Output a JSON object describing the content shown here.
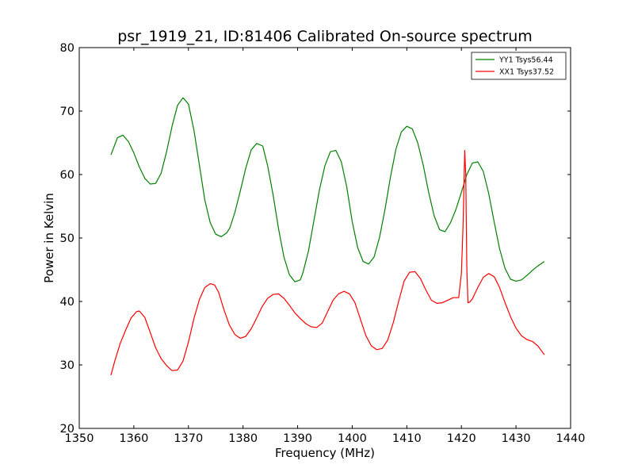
{
  "chart_data": {
    "type": "line",
    "title": "psr_1919_21, ID:81406 Calibrated On-source spectrum",
    "xlabel": "Frequency (MHz)",
    "ylabel": "Power in Kelvin",
    "xlim": [
      1350,
      1440
    ],
    "ylim": [
      20,
      80
    ],
    "xticks": [
      1350,
      1360,
      1370,
      1380,
      1390,
      1400,
      1410,
      1420,
      1430,
      1440
    ],
    "yticks": [
      20,
      30,
      40,
      50,
      60,
      70,
      80
    ],
    "grid": false,
    "legend_position": "top-right",
    "series": [
      {
        "name": "YY1 Tsys56.44",
        "color": "#008000",
        "x": [
          1355.8,
          1357.0,
          1358.0,
          1359.0,
          1360.0,
          1361.0,
          1362.0,
          1363.0,
          1364.0,
          1365.0,
          1366.0,
          1367.0,
          1368.0,
          1369.0,
          1370.0,
          1371.0,
          1372.0,
          1373.0,
          1374.0,
          1375.0,
          1376.0,
          1377.0,
          1377.6,
          1378.5,
          1379.5,
          1380.5,
          1381.5,
          1382.5,
          1383.6,
          1384.5,
          1385.5,
          1386.5,
          1387.5,
          1388.5,
          1389.5,
          1390.5,
          1391.0,
          1392.0,
          1393.0,
          1394.0,
          1395.0,
          1396.0,
          1397.0,
          1398.0,
          1399.0,
          1400.0,
          1401.0,
          1402.0,
          1403.0,
          1404.0,
          1405.0,
          1406.0,
          1407.0,
          1408.0,
          1409.0,
          1410.0,
          1411.0,
          1412.0,
          1413.0,
          1414.0,
          1415.0,
          1416.0,
          1417.0,
          1418.0,
          1419.0,
          1420.0,
          1421.0,
          1422.0,
          1423.0,
          1424.0,
          1425.0,
          1426.0,
          1427.0,
          1428.0,
          1429.0,
          1430.0,
          1431.0,
          1432.0,
          1433.0,
          1434.0,
          1435.2
        ],
        "y": [
          63.1,
          65.8,
          66.2,
          65.2,
          63.4,
          61.2,
          59.4,
          58.5,
          58.6,
          60.2,
          63.6,
          67.6,
          70.9,
          72.1,
          71.1,
          67.0,
          61.5,
          56.0,
          52.4,
          50.6,
          50.2,
          50.8,
          51.6,
          54.0,
          57.4,
          61.0,
          63.9,
          64.9,
          64.5,
          61.4,
          56.8,
          51.5,
          47.0,
          44.2,
          43.1,
          43.4,
          44.6,
          48.0,
          52.8,
          57.6,
          61.4,
          63.6,
          63.8,
          62.0,
          58.0,
          52.6,
          48.5,
          46.3,
          45.9,
          47.0,
          50.1,
          54.5,
          59.6,
          64.0,
          66.7,
          67.6,
          67.2,
          65.0,
          61.5,
          57.2,
          53.5,
          51.3,
          51.0,
          52.4,
          54.5,
          57.2,
          60.0,
          61.8,
          62.0,
          60.5,
          57.0,
          52.5,
          48.3,
          45.2,
          43.5,
          43.2,
          43.4,
          44.1,
          44.9,
          45.6,
          46.3
        ]
      },
      {
        "name": "XX1 Tsys37.52",
        "color": "#ff0000",
        "x": [
          1355.8,
          1356.5,
          1357.5,
          1358.5,
          1359.5,
          1360.5,
          1361.0,
          1362.0,
          1363.0,
          1364.0,
          1365.0,
          1366.0,
          1367.0,
          1368.0,
          1369.0,
          1370.0,
          1371.0,
          1372.0,
          1373.0,
          1374.0,
          1374.8,
          1375.5,
          1376.5,
          1377.5,
          1378.5,
          1379.5,
          1380.5,
          1381.5,
          1382.5,
          1383.5,
          1384.5,
          1385.5,
          1386.5,
          1387.5,
          1388.5,
          1389.5,
          1390.5,
          1391.5,
          1392.5,
          1393.5,
          1394.5,
          1395.5,
          1396.5,
          1397.5,
          1398.5,
          1399.5,
          1400.5,
          1401.5,
          1402.5,
          1403.5,
          1404.5,
          1405.5,
          1406.5,
          1407.5,
          1408.5,
          1409.5,
          1410.5,
          1411.5,
          1412.5,
          1413.5,
          1414.5,
          1415.5,
          1416.5,
          1417.5,
          1418.5,
          1419.5,
          1420.0,
          1420.3,
          1420.6,
          1420.8,
          1421.0,
          1421.2,
          1421.5,
          1422.0,
          1423.0,
          1424.0,
          1425.0,
          1426.0,
          1427.0,
          1428.0,
          1429.0,
          1430.0,
          1431.0,
          1432.0,
          1433.0,
          1434.0,
          1435.2
        ],
        "y": [
          28.4,
          30.6,
          33.4,
          35.5,
          37.4,
          38.4,
          38.5,
          37.5,
          35.1,
          32.7,
          31.0,
          29.9,
          29.1,
          29.2,
          30.6,
          33.6,
          37.3,
          40.3,
          42.2,
          42.8,
          42.6,
          41.5,
          38.7,
          36.3,
          34.8,
          34.2,
          34.5,
          35.7,
          37.4,
          39.2,
          40.5,
          41.1,
          41.2,
          40.5,
          39.4,
          38.2,
          37.3,
          36.5,
          36.0,
          35.9,
          36.6,
          38.4,
          40.2,
          41.2,
          41.6,
          41.2,
          39.8,
          37.2,
          34.6,
          33.0,
          32.4,
          32.6,
          33.9,
          36.6,
          40.0,
          43.2,
          44.6,
          44.7,
          43.6,
          41.8,
          40.2,
          39.7,
          39.8,
          40.2,
          40.6,
          40.6,
          44.4,
          52.0,
          63.8,
          60.0,
          45.0,
          39.8,
          39.9,
          40.4,
          42.2,
          43.8,
          44.4,
          43.9,
          42.2,
          39.8,
          37.6,
          35.8,
          34.6,
          34.0,
          33.7,
          33.0,
          31.6
        ]
      }
    ]
  }
}
